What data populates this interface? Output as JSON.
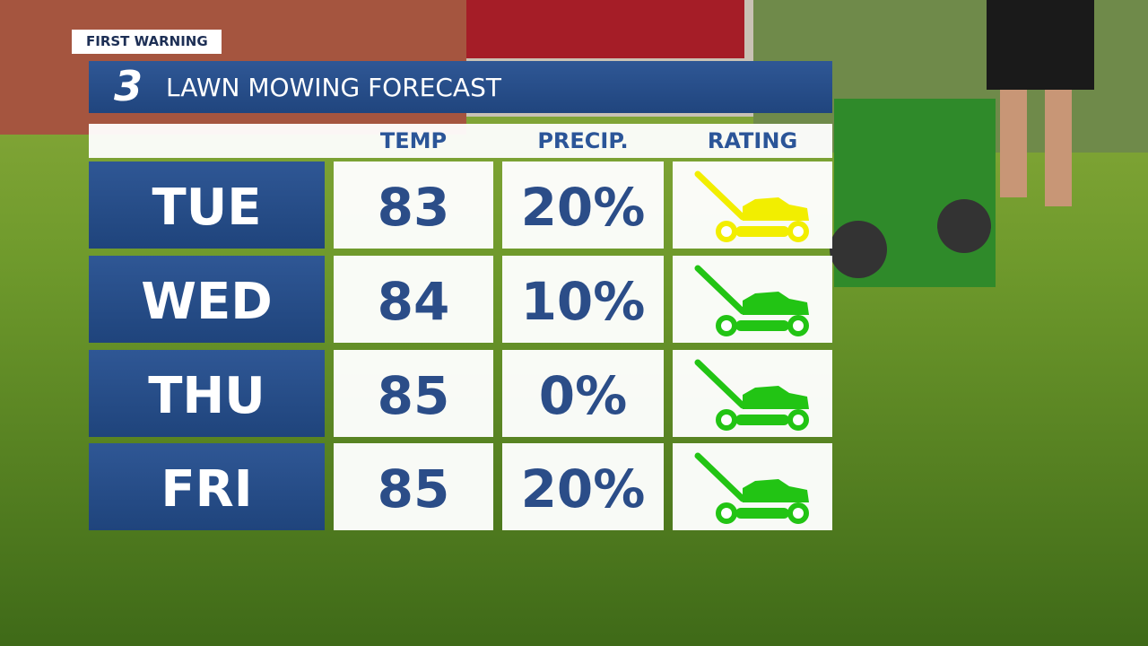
{
  "header": {
    "badge": "FIRST WARNING",
    "logo": "3",
    "title": "LAWN MOWING FORECAST"
  },
  "table": {
    "columns": [
      "TEMP",
      "PRECIP.",
      "RATING"
    ],
    "rows": [
      {
        "day": "TUE",
        "temp": 83,
        "precip": "20%",
        "rating_color": "#f2ee00"
      },
      {
        "day": "WED",
        "temp": 84,
        "precip": "10%",
        "rating_color": "#22c414"
      },
      {
        "day": "THU",
        "temp": 85,
        "precip": "0%",
        "rating_color": "#22c414"
      },
      {
        "day": "FRI",
        "temp": 85,
        "precip": "20%",
        "rating_color": "#22c414"
      }
    ]
  }
}
